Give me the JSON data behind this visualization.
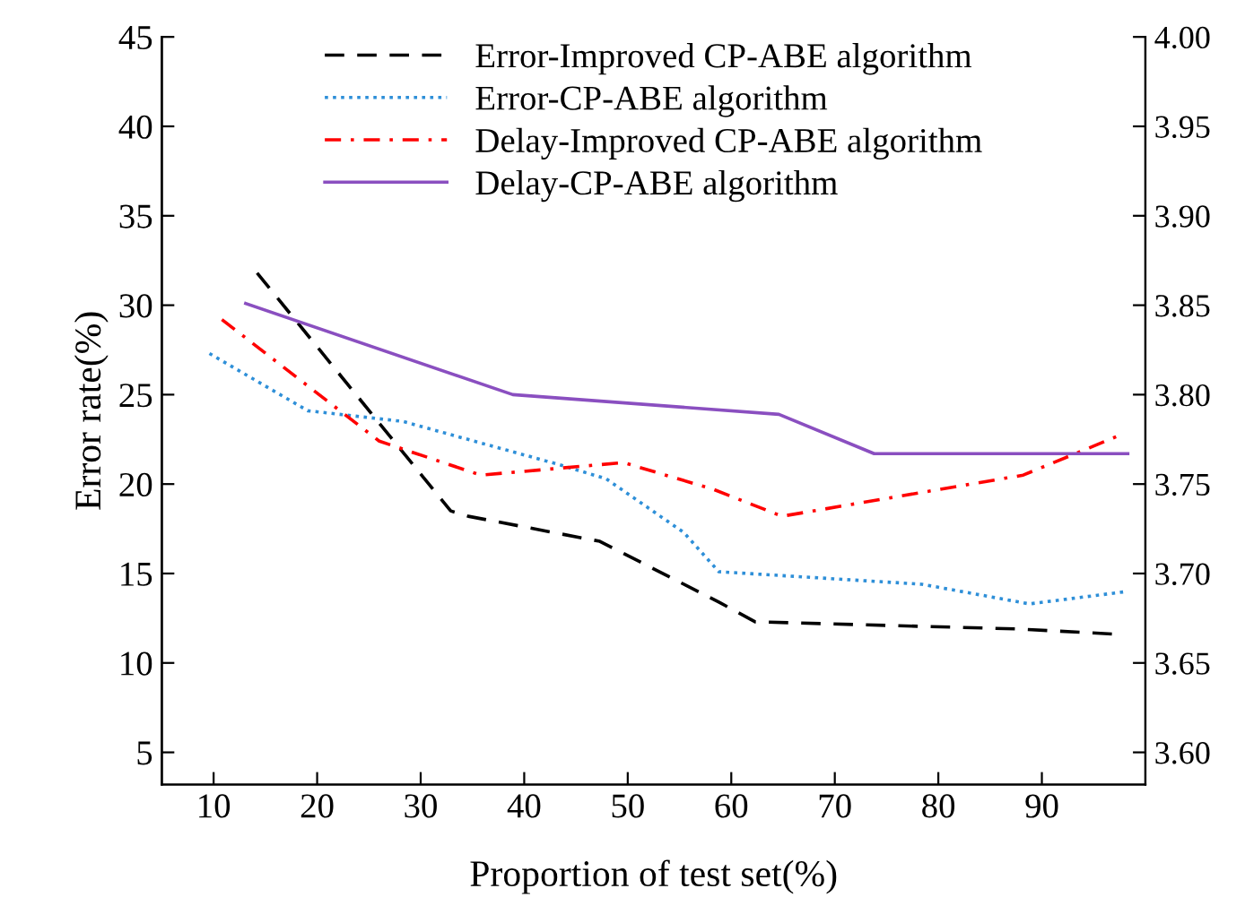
{
  "chart_data": {
    "type": "line",
    "xlabel": "Proportion of test set(%)",
    "ylabel": "Error rate(%)",
    "xlim": [
      5,
      100
    ],
    "xticks": [
      10,
      20,
      30,
      40,
      50,
      60,
      70,
      80,
      90
    ],
    "ylim": [
      3.2,
      45
    ],
    "yticks": [
      5,
      10,
      15,
      20,
      25,
      30,
      35,
      40,
      45
    ],
    "y2lim": [
      3.582,
      4.0
    ],
    "y2ticks": [
      {
        "value": 3.6,
        "label": "3.60"
      },
      3.65,
      {
        "value": 3.7,
        "label": "3.70"
      },
      3.75,
      {
        "value": 3.8,
        "label": "3.80"
      },
      3.85,
      {
        "value": 3.9,
        "label": "3.90"
      },
      3.95,
      {
        "value": 4.0,
        "label": "4.00"
      }
    ],
    "legend": "top",
    "grid": false,
    "marker": "none",
    "series": [
      {
        "name": "Error-Improved CP-ABE algorithm",
        "color": "#000000",
        "line_style": "dashed",
        "x": [
          14.2,
          32.9,
          34.6,
          47.3,
          58.8,
          62.3,
          87.6,
          97.4
        ],
        "values": [
          31.8,
          18.5,
          18.2,
          16.8,
          13.4,
          12.3,
          11.9,
          11.6
        ]
      },
      {
        "name": "Error-CP-ABE algorithm",
        "color": "#2e8fd8",
        "line_style": "dotted",
        "x": [
          9.6,
          19.1,
          28.3,
          43.3,
          47.9,
          55.4,
          58.8,
          78.4,
          88.8,
          98.3
        ],
        "values": [
          27.3,
          24.1,
          23.5,
          21.1,
          20.3,
          17.3,
          15.1,
          14.4,
          13.3,
          14.0
        ]
      },
      {
        "name": "Delay-Improved CP-ABE algorithm",
        "color": "#ff0000",
        "line_style": "dashdot",
        "axis": "y2",
        "x": [
          10.8,
          26.0,
          35.8,
          49.6,
          58.3,
          64.9,
          88.2,
          97.4
        ],
        "values": [
          3.842,
          3.774,
          3.755,
          3.762,
          3.747,
          3.732,
          3.755,
          3.777
        ]
      },
      {
        "name": "Delay-CP-ABE algorithm",
        "color": "#8a4fc0",
        "line_style": "solid",
        "axis": "y2",
        "x": [
          13.1,
          38.9,
          64.6,
          73.8,
          98.3
        ],
        "values": [
          3.851,
          3.8,
          3.789,
          3.767,
          3.767
        ]
      }
    ]
  }
}
